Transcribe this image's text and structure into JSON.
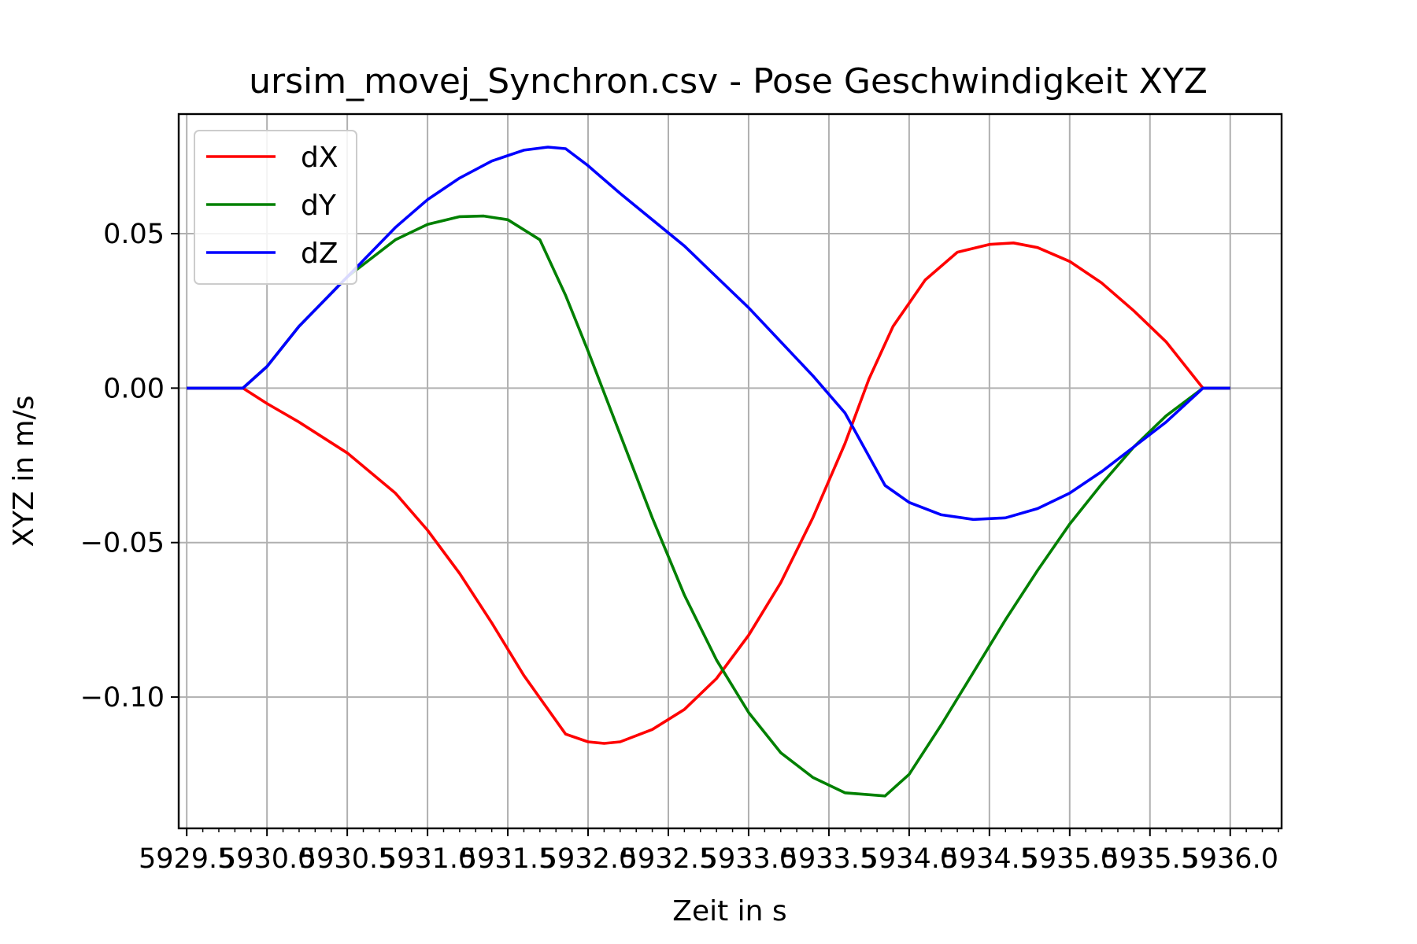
{
  "chart_data": {
    "type": "line",
    "title": "ursim_movej_Synchron.csv - Pose Geschwindigkeit XYZ",
    "xlabel": "Zeit in s",
    "ylabel": "XYZ in m/s",
    "xlim": [
      5929.45,
      5936.32
    ],
    "ylim": [
      -0.1425,
      0.0887
    ],
    "grid": true,
    "legend_position": "top-left",
    "x_ticks": [
      {
        "value": 5929.5,
        "label": "5929.5"
      },
      {
        "value": 5930.0,
        "label": "5930.0"
      },
      {
        "value": 5930.5,
        "label": "5930.5"
      },
      {
        "value": 5931.0,
        "label": "5931.0"
      },
      {
        "value": 5931.5,
        "label": "5931.5"
      },
      {
        "value": 5932.0,
        "label": "5932.0"
      },
      {
        "value": 5932.5,
        "label": "5932.5"
      },
      {
        "value": 5933.0,
        "label": "5933.0"
      },
      {
        "value": 5933.5,
        "label": "5933.5"
      },
      {
        "value": 5934.0,
        "label": "5934.0"
      },
      {
        "value": 5934.5,
        "label": "5934.5"
      },
      {
        "value": 5935.0,
        "label": "5935.0"
      },
      {
        "value": 5935.5,
        "label": "5935.5"
      },
      {
        "value": 5936.0,
        "label": "5936.0"
      }
    ],
    "y_ticks": [
      {
        "value": 0.05,
        "label": "0.05"
      },
      {
        "value": 0.0,
        "label": "0.00"
      },
      {
        "value": -0.05,
        "label": "−0.05"
      },
      {
        "value": -0.1,
        "label": "−0.10"
      }
    ],
    "series": [
      {
        "name": "dX",
        "color": "#ff0000",
        "x": [
          5929.5,
          5929.8,
          5929.85,
          5930.0,
          5930.2,
          5930.5,
          5930.8,
          5931.0,
          5931.2,
          5931.4,
          5931.6,
          5931.86,
          5932.0,
          5932.1,
          5932.2,
          5932.4,
          5932.6,
          5932.8,
          5933.0,
          5933.2,
          5933.4,
          5933.6,
          5933.75,
          5933.9,
          5934.1,
          5934.3,
          5934.5,
          5934.65,
          5934.8,
          5935.0,
          5935.2,
          5935.4,
          5935.6,
          5935.83,
          5936.0
        ],
        "y": [
          0.0,
          0.0,
          0.0,
          -0.005,
          -0.011,
          -0.021,
          -0.034,
          -0.046,
          -0.06,
          -0.076,
          -0.093,
          -0.112,
          -0.1145,
          -0.115,
          -0.1145,
          -0.1105,
          -0.104,
          -0.094,
          -0.08,
          -0.063,
          -0.042,
          -0.018,
          0.003,
          0.02,
          0.035,
          0.044,
          0.0465,
          0.047,
          0.0455,
          0.041,
          0.034,
          0.025,
          0.015,
          0.0,
          0.0
        ]
      },
      {
        "name": "dY",
        "color": "#008000",
        "x": [
          5929.5,
          5929.8,
          5929.85,
          5930.0,
          5930.2,
          5930.5,
          5930.8,
          5931.0,
          5931.2,
          5931.35,
          5931.5,
          5931.7,
          5931.86,
          5932.0,
          5932.2,
          5932.4,
          5932.6,
          5932.8,
          5933.0,
          5933.2,
          5933.4,
          5933.6,
          5933.85,
          5934.0,
          5934.2,
          5934.4,
          5934.6,
          5934.8,
          5935.0,
          5935.2,
          5935.4,
          5935.6,
          5935.83,
          5936.0
        ],
        "y": [
          0.0,
          0.0,
          0.0,
          0.007,
          0.02,
          0.036,
          0.048,
          0.053,
          0.0555,
          0.0557,
          0.0545,
          0.048,
          0.03,
          0.012,
          -0.015,
          -0.042,
          -0.067,
          -0.088,
          -0.105,
          -0.118,
          -0.126,
          -0.131,
          -0.132,
          -0.125,
          -0.109,
          -0.092,
          -0.075,
          -0.059,
          -0.044,
          -0.031,
          -0.019,
          -0.009,
          0.0,
          0.0
        ]
      },
      {
        "name": "dZ",
        "color": "#0000ff",
        "x": [
          5929.5,
          5929.8,
          5929.85,
          5930.0,
          5930.2,
          5930.5,
          5930.8,
          5931.0,
          5931.2,
          5931.4,
          5931.6,
          5931.75,
          5931.86,
          5932.0,
          5932.2,
          5932.4,
          5932.6,
          5932.8,
          5933.0,
          5933.2,
          5933.4,
          5933.6,
          5933.85,
          5934.0,
          5934.2,
          5934.4,
          5934.6,
          5934.8,
          5935.0,
          5935.2,
          5935.4,
          5935.6,
          5935.83,
          5936.0
        ],
        "y": [
          0.0,
          0.0,
          0.0,
          0.007,
          0.02,
          0.036,
          0.052,
          0.061,
          0.068,
          0.0735,
          0.077,
          0.078,
          0.0775,
          0.072,
          0.063,
          0.0545,
          0.046,
          0.036,
          0.026,
          0.015,
          0.004,
          -0.008,
          -0.0315,
          -0.037,
          -0.041,
          -0.0425,
          -0.042,
          -0.039,
          -0.034,
          -0.027,
          -0.019,
          -0.011,
          0.0,
          0.0
        ]
      }
    ]
  }
}
